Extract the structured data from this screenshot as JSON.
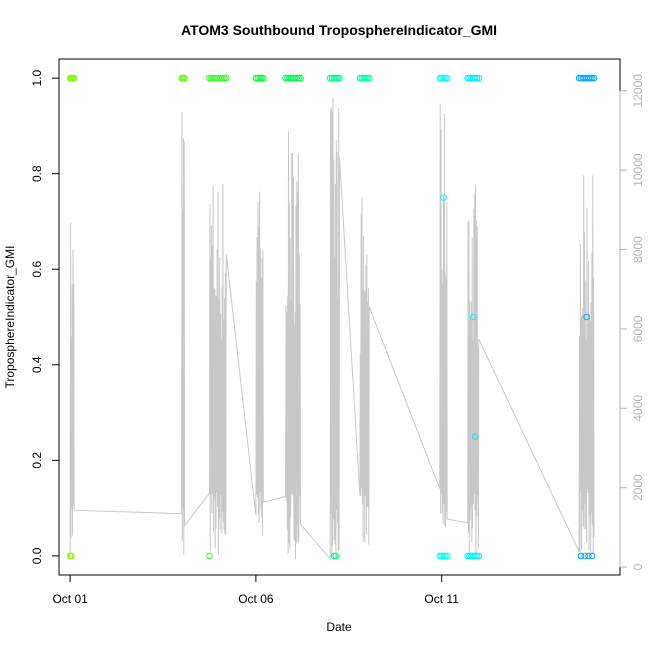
{
  "chart_data": {
    "type": "scatter",
    "title": "ATOM3 Southbound TroposphereIndicator_GMI",
    "xlabel": "Date",
    "ylabel": "TroposphereIndicator_GMI",
    "x_ticks": [
      "Oct 01",
      "Oct 06",
      "Oct 11"
    ],
    "x_tick_values": [
      0,
      5,
      10
    ],
    "x_range": [
      -0.3,
      14.8
    ],
    "ylim": [
      -0.04,
      1.04
    ],
    "y_ticks": [
      "0.0",
      "0.2",
      "0.4",
      "0.6",
      "0.8",
      "1.0"
    ],
    "y_tick_values": [
      0.0,
      0.2,
      0.4,
      0.6,
      0.8,
      1.0
    ],
    "right_axis": {
      "ticks": [
        "0",
        "2000",
        "4000",
        "6000",
        "8000",
        "10000",
        "12000"
      ],
      "tick_values": [
        0,
        2000,
        4000,
        6000,
        8000,
        10000,
        12000
      ],
      "range": [
        -200,
        12800
      ],
      "color": "#b4b4b4"
    },
    "colors": {
      "line": "#c8c8c8"
    },
    "series": [
      {
        "color": "#80ff00",
        "points": [
          [
            0.0,
            1.0
          ],
          [
            0.02,
            1.0
          ],
          [
            0.05,
            1.0
          ],
          [
            0.08,
            1.0
          ],
          [
            0.11,
            1.0
          ],
          [
            0.0,
            0.0
          ],
          [
            0.03,
            0.0
          ]
        ]
      },
      {
        "color": "#55ff00",
        "points": [
          [
            3.0,
            1.0
          ],
          [
            3.04,
            1.0
          ],
          [
            3.08,
            1.0
          ]
        ]
      },
      {
        "color": "#33ff22",
        "points": [
          [
            3.75,
            1.0
          ],
          [
            3.8,
            1.0
          ],
          [
            3.85,
            1.0
          ],
          [
            3.9,
            1.0
          ],
          [
            3.95,
            1.0
          ],
          [
            4.0,
            1.0
          ],
          [
            4.05,
            1.0
          ],
          [
            4.1,
            1.0
          ],
          [
            4.15,
            1.0
          ],
          [
            4.2,
            1.0
          ],
          [
            3.75,
            0.0
          ]
        ]
      },
      {
        "color": "#00ff33",
        "points": [
          [
            5.0,
            1.0
          ],
          [
            5.05,
            1.0
          ],
          [
            5.1,
            1.0
          ],
          [
            5.15,
            1.0
          ],
          [
            5.2,
            1.0
          ]
        ]
      },
      {
        "color": "#00ff55",
        "points": [
          [
            5.8,
            1.0
          ],
          [
            5.85,
            1.0
          ],
          [
            5.9,
            1.0
          ],
          [
            5.95,
            1.0
          ],
          [
            6.0,
            1.0
          ],
          [
            6.05,
            1.0
          ],
          [
            6.1,
            1.0
          ],
          [
            6.15,
            1.0
          ],
          [
            6.2,
            1.0
          ]
        ]
      },
      {
        "color": "#00ff88",
        "points": [
          [
            7.0,
            1.0
          ],
          [
            7.05,
            1.0
          ],
          [
            7.1,
            1.0
          ],
          [
            7.15,
            1.0
          ],
          [
            7.2,
            1.0
          ],
          [
            7.25,
            1.0
          ],
          [
            7.1,
            0.0
          ],
          [
            7.15,
            0.0
          ]
        ]
      },
      {
        "color": "#00ffaa",
        "points": [
          [
            7.8,
            1.0
          ],
          [
            7.85,
            1.0
          ],
          [
            7.9,
            1.0
          ],
          [
            7.95,
            1.0
          ],
          [
            8.0,
            1.0
          ],
          [
            8.05,
            1.0
          ]
        ]
      },
      {
        "color": "#00ffee",
        "points": [
          [
            9.95,
            1.0
          ],
          [
            10.0,
            1.0
          ],
          [
            10.05,
            1.0
          ],
          [
            10.1,
            1.0
          ],
          [
            10.15,
            1.0
          ],
          [
            9.95,
            0.0
          ],
          [
            10.0,
            0.0
          ],
          [
            10.05,
            0.0
          ],
          [
            10.1,
            0.0
          ],
          [
            10.15,
            0.0
          ],
          [
            10.05,
            0.75
          ]
        ]
      },
      {
        "color": "#00f0ff",
        "points": [
          [
            10.7,
            1.0
          ],
          [
            10.75,
            1.0
          ],
          [
            10.8,
            1.0
          ],
          [
            10.85,
            1.0
          ],
          [
            10.9,
            1.0
          ],
          [
            10.95,
            1.0
          ],
          [
            11.0,
            1.0
          ],
          [
            10.7,
            0.0
          ],
          [
            10.75,
            0.0
          ],
          [
            10.8,
            0.0
          ],
          [
            10.85,
            0.0
          ],
          [
            10.9,
            0.0
          ],
          [
            10.95,
            0.0
          ],
          [
            11.0,
            0.0
          ],
          [
            10.85,
            0.5
          ],
          [
            10.9,
            0.25
          ]
        ]
      },
      {
        "color": "#00aaff",
        "points": [
          [
            13.7,
            1.0
          ],
          [
            13.75,
            1.0
          ],
          [
            13.8,
            1.0
          ],
          [
            13.85,
            1.0
          ],
          [
            13.9,
            1.0
          ],
          [
            13.95,
            1.0
          ],
          [
            14.0,
            1.0
          ],
          [
            14.05,
            1.0
          ],
          [
            14.1,
            1.0
          ],
          [
            13.75,
            0.0
          ],
          [
            13.85,
            0.0
          ],
          [
            13.95,
            0.0
          ],
          [
            14.05,
            0.0
          ],
          [
            13.9,
            0.5
          ]
        ]
      }
    ]
  }
}
